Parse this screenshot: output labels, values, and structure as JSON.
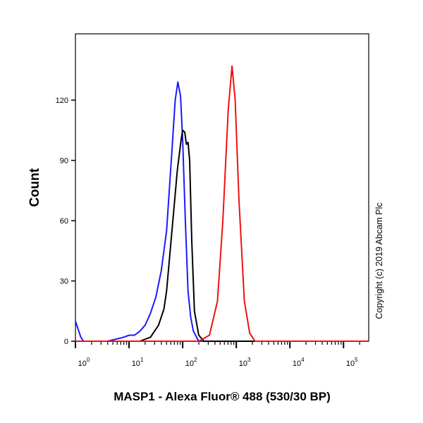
{
  "chart_data": {
    "type": "line",
    "title": "",
    "xlabel": "MASP1 - Alexa Fluor® 488 (530/30 BP)",
    "ylabel": "Count",
    "xscale": "log",
    "xlim_log10": [
      0,
      5.47
    ],
    "ylim": [
      0,
      153
    ],
    "yticks": [
      0,
      30,
      60,
      90,
      120
    ],
    "xtick_labels": [
      {
        "base": "10",
        "exp": "0",
        "log10": 0
      },
      {
        "base": "10",
        "exp": "1",
        "log10": 1
      },
      {
        "base": "10",
        "exp": "2",
        "log10": 2
      },
      {
        "base": "10",
        "exp": "3",
        "log10": 3
      },
      {
        "base": "10",
        "exp": "4",
        "log10": 4
      },
      {
        "base": "10",
        "exp": "5",
        "log10": 5
      }
    ],
    "series": [
      {
        "name": "blue",
        "color": "#1a1aff",
        "x_log10": [
          0,
          0.05,
          0.1,
          0.15,
          0.6,
          0.9,
          1.0,
          1.1,
          1.2,
          1.3,
          1.4,
          1.5,
          1.6,
          1.7,
          1.8,
          1.86,
          1.91,
          1.96,
          2.0,
          2.05,
          2.1,
          2.15,
          2.2,
          2.3,
          5.47
        ],
        "y": [
          10,
          6,
          2,
          0,
          0,
          2,
          3,
          3,
          5,
          8,
          14,
          22,
          35,
          55,
          95,
          120,
          129,
          122,
          100,
          60,
          25,
          12,
          5,
          0,
          0
        ]
      },
      {
        "name": "black",
        "color": "#000000",
        "x_log10": [
          0,
          1.2,
          1.4,
          1.55,
          1.65,
          1.7,
          1.8,
          1.9,
          1.97,
          2.0,
          2.04,
          2.07,
          2.1,
          2.13,
          2.17,
          2.22,
          2.3,
          2.4,
          5.47
        ],
        "y": [
          0,
          0,
          2,
          8,
          16,
          25,
          55,
          85,
          100,
          105,
          104,
          98,
          99,
          90,
          50,
          15,
          3,
          0,
          0
        ]
      },
      {
        "name": "red",
        "color": "#ee1111",
        "x_log10": [
          0,
          2.3,
          2.5,
          2.65,
          2.75,
          2.85,
          2.92,
          2.98,
          3.05,
          3.15,
          3.25,
          3.35,
          5.47
        ],
        "y": [
          0,
          0,
          3,
          20,
          60,
          115,
          137,
          120,
          70,
          20,
          4,
          0,
          0
        ]
      }
    ]
  },
  "copyright": "Copyright (c) 2019 Abcam Plc"
}
